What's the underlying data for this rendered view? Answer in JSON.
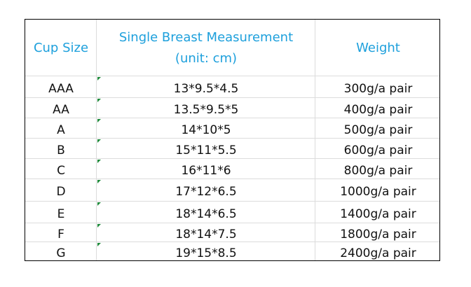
{
  "table": {
    "header": [
      "Cup Size",
      "Single Breast Measurement\n(unit: cm)",
      "Weight"
    ],
    "rows": [
      [
        "AAA",
        "13*9.5*4.5",
        "300g/a pair"
      ],
      [
        "AA",
        "13.5*9.5*5",
        "400g/a pair"
      ],
      [
        "A",
        "14*10*5",
        "500g/a pair"
      ],
      [
        "B",
        "15*11*5.5",
        "600g/a pair"
      ],
      [
        "C",
        "16*11*6",
        "800g/a pair"
      ],
      [
        "D",
        "17*12*6.5",
        "1000g/a pair"
      ],
      [
        "E",
        "18*14*6.5",
        "1400g/a pair"
      ],
      [
        "F",
        "18*14*7.5",
        "1800g/a pair"
      ],
      [
        "G",
        "19*15*8.5",
        "2400g/a pair"
      ]
    ]
  }
}
